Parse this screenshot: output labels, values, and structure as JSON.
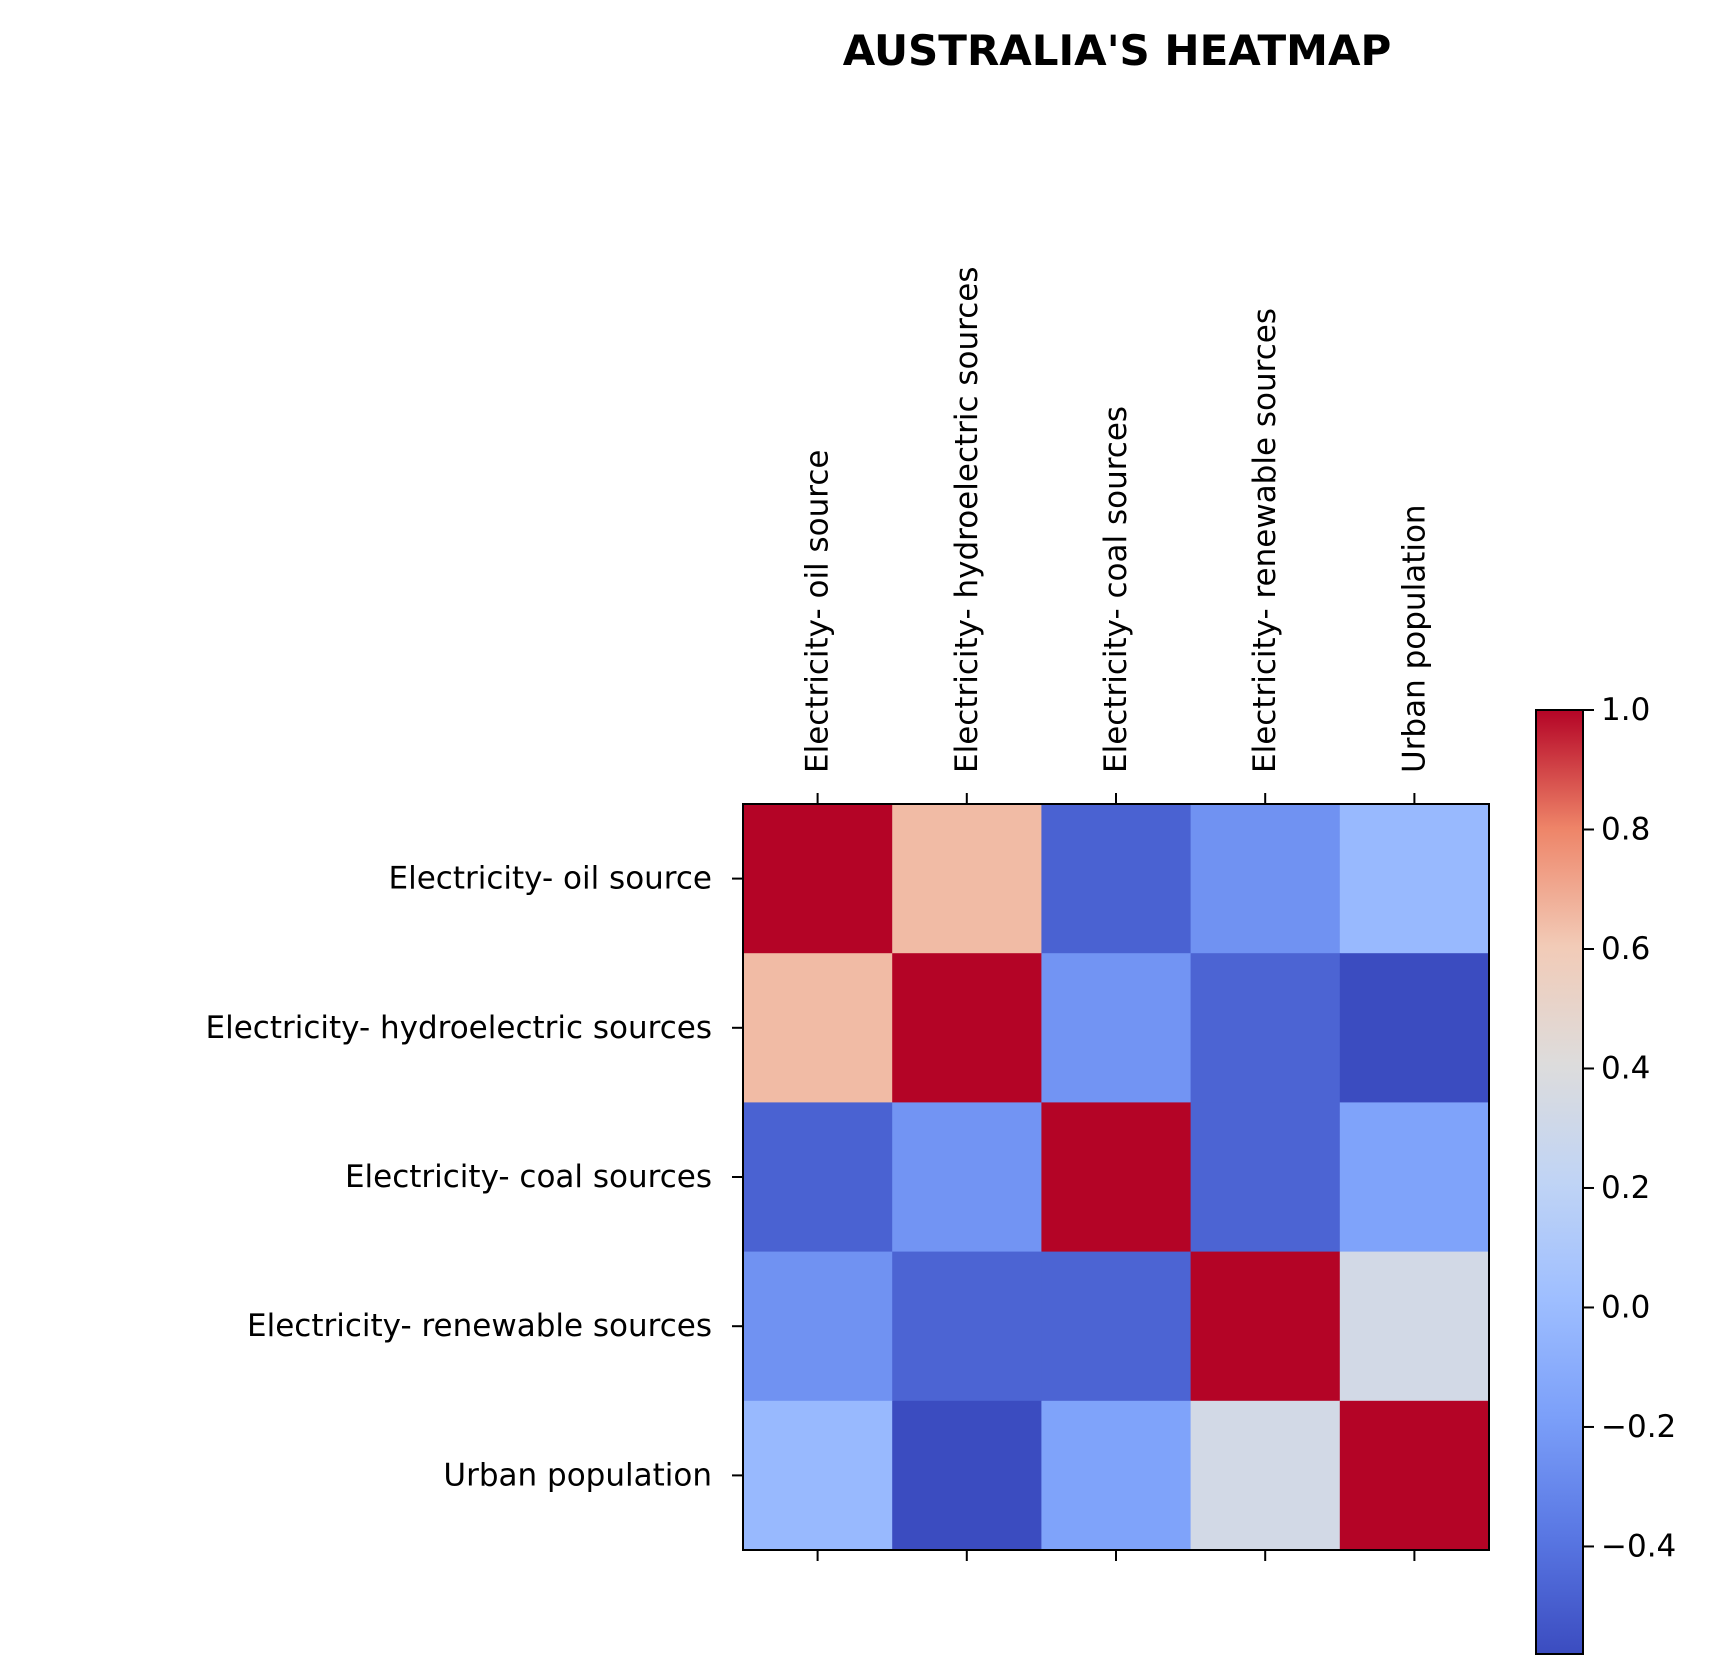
{
  "chart_data": {
    "type": "heatmap",
    "title": "AUSTRALIA'S HEATMAP",
    "xlabel": "",
    "ylabel": "",
    "labels": [
      "Electricity- oil source",
      "Electricity- hydroelectric sources",
      "Electricity- coal sources",
      "Electricity- renewable sources",
      "Urban population"
    ],
    "matrix": [
      [
        1.0,
        0.65,
        -0.48,
        -0.25,
        -0.02
      ],
      [
        0.65,
        1.0,
        -0.24,
        -0.47,
        -0.58
      ],
      [
        -0.48,
        -0.24,
        1.0,
        -0.47,
        -0.16
      ],
      [
        -0.25,
        -0.47,
        -0.47,
        1.0,
        0.33
      ],
      [
        -0.02,
        -0.58,
        -0.16,
        0.33,
        1.0
      ]
    ],
    "colormap": "coolwarm",
    "vmin": -0.58,
    "vmax": 1.0,
    "colorbar_ticks": [
      "1.0",
      "0.8",
      "0.6",
      "0.4",
      "0.2",
      "0.0",
      "−0.2",
      "−0.4"
    ],
    "colorbar_tick_values": [
      1.0,
      0.8,
      0.6,
      0.4,
      0.2,
      0.0,
      -0.2,
      -0.4
    ],
    "x_tick_position": "top",
    "grid": false
  }
}
